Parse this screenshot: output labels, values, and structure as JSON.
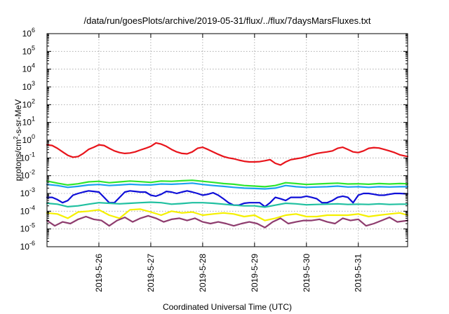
{
  "chart_data": {
    "type": "line",
    "title": "/data/run/goesPlots/archive/2019-05-31/flux/../flux/7daysMarsFluxes.txt",
    "xlabel": "Coordinated Universal Time (UTC)",
    "ylabel_parts": [
      "protons/cm",
      "2",
      "-s-sr-MeV"
    ],
    "xlim": [
      0,
      6.95
    ],
    "ylim_exponent": [
      -6,
      6
    ],
    "y_scale": "log",
    "grid": true,
    "y_tick_base": "10",
    "y_tick_exponents": [
      "-6",
      "-5",
      "-4",
      "-3",
      "-2",
      "-1",
      "0",
      "1",
      "2",
      "3",
      "4",
      "5",
      "6"
    ],
    "x_ticks": [
      {
        "x": 1,
        "label": "2019-5-26"
      },
      {
        "x": 2,
        "label": "2019-5-27"
      },
      {
        "x": 3,
        "label": "2019-5-28"
      },
      {
        "x": 4,
        "label": "2019-5-29"
      },
      {
        "x": 5,
        "label": "2019-5-30"
      },
      {
        "x": 6,
        "label": "2019-5-31"
      }
    ],
    "series": [
      {
        "color": "#e8141b",
        "x": [
          0,
          0.1,
          0.2,
          0.3,
          0.4,
          0.5,
          0.6,
          0.7,
          0.8,
          0.9,
          1.0,
          1.1,
          1.2,
          1.3,
          1.4,
          1.5,
          1.6,
          1.7,
          1.8,
          1.9,
          2.0,
          2.1,
          2.2,
          2.3,
          2.4,
          2.5,
          2.6,
          2.7,
          2.8,
          2.9,
          3.0,
          3.1,
          3.2,
          3.3,
          3.4,
          3.5,
          3.6,
          3.7,
          3.8,
          3.9,
          4.0,
          4.1,
          4.2,
          4.3,
          4.4,
          4.5,
          4.6,
          4.7,
          4.8,
          4.9,
          5.0,
          5.1,
          5.2,
          5.3,
          5.4,
          5.5,
          5.6,
          5.7,
          5.8,
          5.9,
          6.0,
          6.1,
          6.2,
          6.3,
          6.4,
          6.5,
          6.6,
          6.7,
          6.8,
          6.95
        ],
        "y": [
          0.55,
          0.5,
          0.35,
          0.22,
          0.14,
          0.11,
          0.12,
          0.18,
          0.3,
          0.4,
          0.55,
          0.5,
          0.35,
          0.25,
          0.2,
          0.18,
          0.19,
          0.22,
          0.28,
          0.35,
          0.45,
          0.7,
          0.6,
          0.45,
          0.3,
          0.22,
          0.18,
          0.17,
          0.22,
          0.35,
          0.4,
          0.3,
          0.22,
          0.16,
          0.12,
          0.1,
          0.09,
          0.075,
          0.065,
          0.06,
          0.06,
          0.062,
          0.07,
          0.08,
          0.05,
          0.04,
          0.06,
          0.08,
          0.09,
          0.1,
          0.12,
          0.15,
          0.18,
          0.2,
          0.22,
          0.25,
          0.35,
          0.4,
          0.3,
          0.22,
          0.2,
          0.25,
          0.35,
          0.38,
          0.36,
          0.3,
          0.25,
          0.2,
          0.15,
          0.12
        ]
      },
      {
        "color": "#2ee52e",
        "x": [
          0,
          0.2,
          0.4,
          0.6,
          0.8,
          1.0,
          1.2,
          1.4,
          1.6,
          1.8,
          2.0,
          2.2,
          2.4,
          2.6,
          2.8,
          3.0,
          3.2,
          3.4,
          3.6,
          3.8,
          4.0,
          4.2,
          4.4,
          4.6,
          4.8,
          5.0,
          5.2,
          5.4,
          5.6,
          5.8,
          6.0,
          6.2,
          6.4,
          6.6,
          6.8,
          6.95
        ],
        "y": [
          0.005,
          0.0038,
          0.003,
          0.0035,
          0.0045,
          0.0048,
          0.004,
          0.0045,
          0.005,
          0.0046,
          0.0042,
          0.005,
          0.0048,
          0.0052,
          0.0055,
          0.0048,
          0.0042,
          0.0036,
          0.0033,
          0.0028,
          0.0026,
          0.0024,
          0.0028,
          0.004,
          0.0036,
          0.0032,
          0.0034,
          0.0036,
          0.0038,
          0.0034,
          0.0035,
          0.0033,
          0.0036,
          0.0034,
          0.0036,
          0.0035
        ]
      },
      {
        "color": "#1aa0f0",
        "x": [
          0,
          0.2,
          0.4,
          0.6,
          0.8,
          1.0,
          1.2,
          1.4,
          1.6,
          1.8,
          2.0,
          2.2,
          2.4,
          2.6,
          2.8,
          3.0,
          3.2,
          3.4,
          3.6,
          3.8,
          4.0,
          4.2,
          4.4,
          4.6,
          4.8,
          5.0,
          5.2,
          5.4,
          5.6,
          5.8,
          6.0,
          6.2,
          6.4,
          6.6,
          6.8,
          6.95
        ],
        "y": [
          0.0032,
          0.0028,
          0.0022,
          0.0025,
          0.003,
          0.0032,
          0.0028,
          0.003,
          0.0033,
          0.0031,
          0.003,
          0.0034,
          0.0033,
          0.0035,
          0.0038,
          0.0032,
          0.0028,
          0.0025,
          0.0022,
          0.002,
          0.0019,
          0.0018,
          0.002,
          0.0028,
          0.0024,
          0.0022,
          0.0023,
          0.0024,
          0.0026,
          0.0023,
          0.0024,
          0.0022,
          0.0024,
          0.0023,
          0.0024,
          0.0024
        ]
      },
      {
        "color": "#0f0fd8",
        "x": [
          0,
          0.1,
          0.2,
          0.3,
          0.4,
          0.5,
          0.6,
          0.7,
          0.8,
          0.9,
          1.0,
          1.1,
          1.2,
          1.3,
          1.4,
          1.5,
          1.6,
          1.7,
          1.8,
          1.9,
          2.0,
          2.1,
          2.2,
          2.3,
          2.4,
          2.5,
          2.6,
          2.7,
          2.8,
          2.9,
          3.0,
          3.1,
          3.2,
          3.3,
          3.4,
          3.5,
          3.6,
          3.7,
          3.8,
          3.9,
          4.0,
          4.1,
          4.2,
          4.3,
          4.4,
          4.5,
          4.6,
          4.7,
          4.8,
          4.9,
          5.0,
          5.1,
          5.2,
          5.3,
          5.4,
          5.5,
          5.6,
          5.7,
          5.8,
          5.9,
          6.0,
          6.1,
          6.2,
          6.3,
          6.4,
          6.5,
          6.6,
          6.7,
          6.8,
          6.95
        ],
        "y": [
          0.0006,
          0.0006,
          0.00045,
          0.0003,
          0.0004,
          0.0008,
          0.001,
          0.0012,
          0.0014,
          0.0013,
          0.0012,
          0.0006,
          0.0003,
          0.0003,
          0.0006,
          0.0012,
          0.0014,
          0.0013,
          0.0012,
          0.0012,
          0.0008,
          0.0007,
          0.0009,
          0.0013,
          0.0012,
          0.001,
          0.0012,
          0.0014,
          0.0012,
          0.001,
          0.0008,
          0.0009,
          0.0011,
          0.0008,
          0.0005,
          0.0003,
          0.00022,
          0.00022,
          0.00028,
          0.0003,
          0.0003,
          0.0003,
          0.00018,
          0.0003,
          0.0006,
          0.0005,
          0.0004,
          0.0006,
          0.0006,
          0.0006,
          0.0007,
          0.0006,
          0.0005,
          0.0003,
          0.0003,
          0.0004,
          0.0006,
          0.0007,
          0.0006,
          0.0003,
          0.0008,
          0.001,
          0.001,
          0.0009,
          0.0008,
          0.0008,
          0.0009,
          0.001,
          0.001,
          0.00095
        ]
      },
      {
        "color": "#20c0a0",
        "x": [
          0,
          0.2,
          0.4,
          0.6,
          0.8,
          1.0,
          1.2,
          1.4,
          1.6,
          1.8,
          2.0,
          2.2,
          2.4,
          2.6,
          2.8,
          3.0,
          3.2,
          3.4,
          3.6,
          3.8,
          4.0,
          4.2,
          4.4,
          4.6,
          4.8,
          5.0,
          5.2,
          5.4,
          5.6,
          5.8,
          6.0,
          6.2,
          6.4,
          6.6,
          6.8,
          6.95
        ],
        "y": [
          0.00028,
          0.00025,
          0.00018,
          0.0002,
          0.00025,
          0.0003,
          0.00028,
          0.00026,
          0.00028,
          0.0003,
          0.00032,
          0.0003,
          0.00025,
          0.00027,
          0.0003,
          0.0003,
          0.00028,
          0.00025,
          0.00022,
          0.0002,
          0.0002,
          0.00017,
          0.00022,
          0.00028,
          0.00026,
          0.00023,
          0.00024,
          0.00025,
          0.00026,
          0.00024,
          0.00025,
          0.00024,
          0.00026,
          0.00024,
          0.00025,
          0.00025
        ]
      },
      {
        "color": "#f5f000",
        "x": [
          0,
          0.2,
          0.4,
          0.6,
          0.8,
          1.0,
          1.2,
          1.4,
          1.6,
          1.8,
          2.0,
          2.2,
          2.4,
          2.6,
          2.8,
          3.0,
          3.2,
          3.4,
          3.6,
          3.8,
          4.0,
          4.2,
          4.4,
          4.6,
          4.8,
          5.0,
          5.2,
          5.4,
          5.6,
          5.8,
          6.0,
          6.2,
          6.4,
          6.6,
          6.8,
          6.95
        ],
        "y": [
          8e-05,
          7e-05,
          4e-05,
          9e-05,
          0.0001,
          0.00012,
          6e-05,
          4e-05,
          0.00012,
          0.00013,
          9e-05,
          6e-05,
          0.0001,
          8e-05,
          9e-05,
          6e-05,
          7e-05,
          8e-05,
          7e-05,
          5e-05,
          6e-05,
          3e-05,
          4e-05,
          6e-05,
          7e-05,
          5e-05,
          5e-05,
          6e-05,
          6e-05,
          6e-05,
          7e-05,
          5e-05,
          6e-05,
          7e-05,
          8e-05,
          6e-05
        ]
      },
      {
        "color": "#8e3c6e",
        "x": [
          0,
          0.15,
          0.3,
          0.45,
          0.6,
          0.75,
          0.9,
          1.05,
          1.2,
          1.35,
          1.5,
          1.65,
          1.8,
          1.95,
          2.1,
          2.25,
          2.4,
          2.55,
          2.7,
          2.85,
          3.0,
          3.15,
          3.3,
          3.45,
          3.6,
          3.75,
          3.9,
          4.05,
          4.2,
          4.35,
          4.5,
          4.65,
          4.8,
          4.95,
          5.1,
          5.25,
          5.4,
          5.55,
          5.7,
          5.85,
          6.0,
          6.15,
          6.3,
          6.45,
          6.6,
          6.75,
          6.95
        ],
        "y": [
          3e-05,
          1.5e-05,
          2.5e-05,
          2e-05,
          3.5e-05,
          5e-05,
          3.5e-05,
          3e-05,
          1.5e-05,
          3e-05,
          4.5e-05,
          2.5e-05,
          4e-05,
          5.5e-05,
          4e-05,
          2.5e-05,
          3.5e-05,
          4e-05,
          3e-05,
          4e-05,
          2.5e-05,
          2e-05,
          2.5e-05,
          2e-05,
          1.5e-05,
          2e-05,
          2.5e-05,
          2e-05,
          1.2e-05,
          2.5e-05,
          4e-05,
          2e-05,
          2.5e-05,
          3e-05,
          3e-05,
          3.5e-05,
          2.5e-05,
          2e-05,
          4e-05,
          3e-05,
          3.5e-05,
          1.5e-05,
          2e-05,
          3e-05,
          4.5e-05,
          2.5e-05,
          3e-05
        ]
      }
    ]
  }
}
